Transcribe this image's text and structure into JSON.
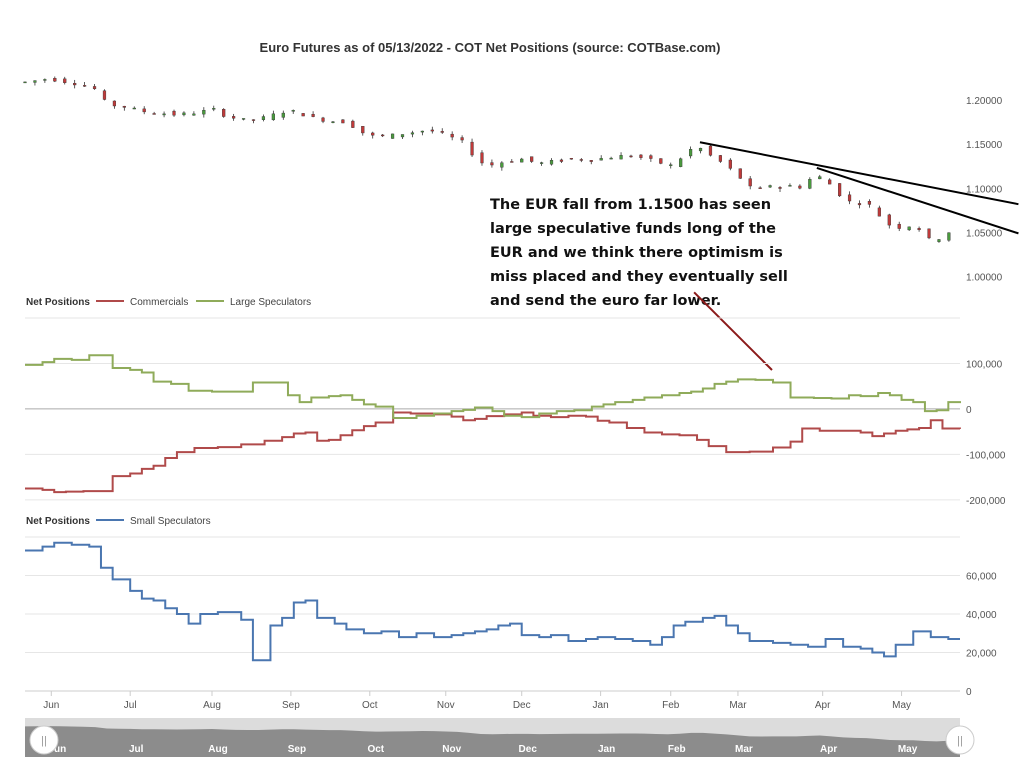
{
  "chart_data": [
    {
      "type": "candlestick",
      "title": "Euro Futures as of 05/13/2022 - COT Net Positions (source: COTBase.com)",
      "y_ticks": [
        "1.20000",
        "1.15000",
        "1.10000",
        "1.05000",
        "1.00000"
      ],
      "ylim": [
        0.985,
        1.245
      ],
      "x_tick_labels": [
        "Jun",
        "Jul",
        "Aug",
        "Sep",
        "Oct",
        "Nov",
        "Dec",
        "Jan",
        "Feb",
        "Mar",
        "Apr",
        "May"
      ],
      "close_path": [
        [
          0,
          1.22
        ],
        [
          8,
          1.224
        ],
        [
          18,
          1.218
        ],
        [
          24,
          1.212
        ],
        [
          28,
          1.195
        ],
        [
          34,
          1.192
        ],
        [
          40,
          1.187
        ],
        [
          46,
          1.185
        ],
        [
          52,
          1.183
        ],
        [
          60,
          1.186
        ],
        [
          64,
          1.19
        ],
        [
          68,
          1.183
        ],
        [
          74,
          1.177
        ],
        [
          80,
          1.178
        ],
        [
          86,
          1.184
        ],
        [
          90,
          1.188
        ],
        [
          94,
          1.185
        ],
        [
          98,
          1.18
        ],
        [
          104,
          1.176
        ],
        [
          110,
          1.175
        ],
        [
          116,
          1.162
        ],
        [
          120,
          1.158
        ],
        [
          126,
          1.16
        ],
        [
          132,
          1.163
        ],
        [
          138,
          1.166
        ],
        [
          144,
          1.16
        ],
        [
          150,
          1.152
        ],
        [
          154,
          1.135
        ],
        [
          158,
          1.125
        ],
        [
          164,
          1.13
        ],
        [
          170,
          1.133
        ],
        [
          176,
          1.128
        ],
        [
          182,
          1.131
        ],
        [
          188,
          1.133
        ],
        [
          194,
          1.132
        ],
        [
          200,
          1.135
        ],
        [
          206,
          1.137
        ],
        [
          212,
          1.134
        ],
        [
          218,
          1.128
        ],
        [
          222,
          1.125
        ],
        [
          226,
          1.14
        ],
        [
          230,
          1.148
        ],
        [
          234,
          1.138
        ],
        [
          238,
          1.13
        ],
        [
          242,
          1.12
        ],
        [
          246,
          1.108
        ],
        [
          250,
          1.095
        ],
        [
          254,
          1.105
        ],
        [
          258,
          1.1
        ],
        [
          262,
          1.103
        ],
        [
          266,
          1.101
        ],
        [
          270,
          1.115
        ],
        [
          274,
          1.11
        ],
        [
          278,
          1.095
        ],
        [
          282,
          1.085
        ],
        [
          286,
          1.083
        ],
        [
          290,
          1.08
        ],
        [
          294,
          1.062
        ],
        [
          298,
          1.055
        ],
        [
          302,
          1.058
        ],
        [
          306,
          1.054
        ],
        [
          310,
          1.04
        ],
        [
          314,
          1.045
        ],
        [
          318,
          1.055
        ]
      ],
      "trendlines": [
        {
          "from": [
            231,
            1.152
          ],
          "to": [
            340,
            1.082
          ]
        },
        {
          "from": [
            271,
            1.123
          ],
          "to": [
            340,
            1.049
          ]
        }
      ],
      "annotation": {
        "lines": [
          "The EUR fall from 1.1500 has seen",
          "large speculative funds long of the",
          "EUR and we think there optimism is",
          "miss placed and they eventually sell",
          "and send the euro far lower."
        ],
        "arrow_from": [
          229,
          1.005
        ],
        "arrow_to": [
          245,
          0.96
        ]
      }
    },
    {
      "type": "line",
      "legend_title": "Net Positions",
      "y_ticks": [
        "100,000",
        "0",
        "-100,000",
        "-200,000"
      ],
      "ylim": [
        -240000,
        200000
      ],
      "series": [
        {
          "name": "Commercials",
          "color": "#b04a4a",
          "values": [
            [
              0,
              -175000
            ],
            [
              6,
              -178000
            ],
            [
              10,
              -183000
            ],
            [
              14,
              -182000
            ],
            [
              20,
              -181000
            ],
            [
              26,
              -181000
            ],
            [
              30,
              -148000
            ],
            [
              36,
              -142000
            ],
            [
              40,
              -132000
            ],
            [
              44,
              -125000
            ],
            [
              48,
              -108000
            ],
            [
              52,
              -95000
            ],
            [
              58,
              -86000
            ],
            [
              66,
              -84000
            ],
            [
              74,
              -78000
            ],
            [
              82,
              -70000
            ],
            [
              88,
              -62000
            ],
            [
              92,
              -54000
            ],
            [
              96,
              -52000
            ],
            [
              100,
              -70000
            ],
            [
              104,
              -68000
            ],
            [
              108,
              -58000
            ],
            [
              112,
              -47000
            ],
            [
              116,
              -38000
            ],
            [
              120,
              -30000
            ],
            [
              126,
              -8000
            ],
            [
              132,
              -10000
            ],
            [
              140,
              -12000
            ],
            [
              146,
              -17000
            ],
            [
              150,
              -25000
            ],
            [
              154,
              -22000
            ],
            [
              158,
              -16000
            ],
            [
              164,
              -12000
            ],
            [
              170,
              -8000
            ],
            [
              174,
              -15000
            ],
            [
              180,
              -18000
            ],
            [
              186,
              -15000
            ],
            [
              192,
              -17000
            ],
            [
              196,
              -26000
            ],
            [
              200,
              -30000
            ],
            [
              206,
              -42000
            ],
            [
              212,
              -52000
            ],
            [
              218,
              -56000
            ],
            [
              224,
              -58000
            ],
            [
              230,
              -68000
            ],
            [
              234,
              -82000
            ],
            [
              240,
              -95000
            ],
            [
              248,
              -94000
            ],
            [
              256,
              -85000
            ],
            [
              262,
              -72000
            ],
            [
              266,
              -43000
            ],
            [
              272,
              -48000
            ],
            [
              280,
              -48000
            ],
            [
              286,
              -52000
            ],
            [
              290,
              -60000
            ],
            [
              294,
              -54000
            ],
            [
              298,
              -48000
            ],
            [
              302,
              -45000
            ],
            [
              306,
              -42000
            ],
            [
              310,
              -25000
            ],
            [
              314,
              -43000
            ],
            [
              320,
              -44000
            ]
          ]
        },
        {
          "name": "Large Speculators",
          "color": "#8fab5a",
          "values": [
            [
              0,
              97000
            ],
            [
              6,
              103000
            ],
            [
              10,
              110000
            ],
            [
              16,
              108000
            ],
            [
              22,
              118000
            ],
            [
              26,
              118000
            ],
            [
              30,
              90000
            ],
            [
              36,
              86000
            ],
            [
              40,
              80000
            ],
            [
              44,
              60000
            ],
            [
              50,
              55000
            ],
            [
              56,
              40000
            ],
            [
              64,
              38000
            ],
            [
              74,
              38000
            ],
            [
              78,
              58000
            ],
            [
              86,
              58000
            ],
            [
              90,
              30000
            ],
            [
              94,
              15000
            ],
            [
              98,
              25000
            ],
            [
              104,
              28000
            ],
            [
              108,
              30000
            ],
            [
              112,
              20000
            ],
            [
              116,
              10000
            ],
            [
              120,
              5000
            ],
            [
              126,
              -20000
            ],
            [
              134,
              -15000
            ],
            [
              140,
              -10000
            ],
            [
              146,
              -5000
            ],
            [
              150,
              -2000
            ],
            [
              154,
              3000
            ],
            [
              160,
              -5000
            ],
            [
              164,
              -15000
            ],
            [
              170,
              -18000
            ],
            [
              176,
              -10000
            ],
            [
              182,
              -5000
            ],
            [
              188,
              -3000
            ],
            [
              194,
              5000
            ],
            [
              198,
              10000
            ],
            [
              202,
              15000
            ],
            [
              208,
              20000
            ],
            [
              212,
              25000
            ],
            [
              218,
              30000
            ],
            [
              224,
              35000
            ],
            [
              228,
              38000
            ],
            [
              232,
              45000
            ],
            [
              236,
              55000
            ],
            [
              240,
              60000
            ],
            [
              244,
              65000
            ],
            [
              250,
              64000
            ],
            [
              256,
              58000
            ],
            [
              262,
              25000
            ],
            [
              270,
              24000
            ],
            [
              276,
              23000
            ],
            [
              282,
              30000
            ],
            [
              286,
              28000
            ],
            [
              292,
              35000
            ],
            [
              296,
              30000
            ],
            [
              300,
              20000
            ],
            [
              304,
              15000
            ],
            [
              308,
              -5000
            ],
            [
              312,
              -3000
            ],
            [
              316,
              15000
            ],
            [
              320,
              17000
            ]
          ]
        }
      ]
    },
    {
      "type": "line",
      "legend_title": "Net Positions",
      "y_ticks": [
        "60,000",
        "40,000",
        "20,000",
        "0"
      ],
      "ylim": [
        0,
        80000
      ],
      "x_tick_labels": [
        "Jun",
        "Jul",
        "Aug",
        "Sep",
        "Oct",
        "Nov",
        "Dec",
        "Jan",
        "Feb",
        "Mar",
        "Apr",
        "May"
      ],
      "series": [
        {
          "name": "Small Speculators",
          "color": "#4a76b0",
          "values": [
            [
              0,
              73000
            ],
            [
              6,
              75000
            ],
            [
              10,
              77000
            ],
            [
              16,
              76000
            ],
            [
              22,
              75000
            ],
            [
              26,
              64000
            ],
            [
              30,
              58000
            ],
            [
              36,
              52000
            ],
            [
              40,
              48000
            ],
            [
              44,
              47000
            ],
            [
              48,
              43000
            ],
            [
              52,
              40000
            ],
            [
              56,
              35000
            ],
            [
              60,
              40000
            ],
            [
              66,
              41000
            ],
            [
              70,
              41000
            ],
            [
              74,
              37000
            ],
            [
              78,
              16000
            ],
            [
              84,
              34000
            ],
            [
              88,
              38000
            ],
            [
              92,
              46000
            ],
            [
              96,
              47000
            ],
            [
              100,
              38000
            ],
            [
              106,
              35000
            ],
            [
              110,
              32000
            ],
            [
              116,
              30000
            ],
            [
              122,
              31000
            ],
            [
              128,
              28000
            ],
            [
              134,
              30000
            ],
            [
              140,
              28000
            ],
            [
              146,
              29000
            ],
            [
              150,
              30000
            ],
            [
              154,
              31000
            ],
            [
              158,
              32000
            ],
            [
              162,
              34000
            ],
            [
              166,
              35000
            ],
            [
              170,
              29000
            ],
            [
              176,
              28000
            ],
            [
              180,
              29000
            ],
            [
              186,
              26000
            ],
            [
              192,
              27000
            ],
            [
              196,
              28000
            ],
            [
              202,
              27000
            ],
            [
              208,
              26000
            ],
            [
              214,
              24000
            ],
            [
              218,
              28000
            ],
            [
              222,
              34000
            ],
            [
              226,
              36000
            ],
            [
              232,
              38000
            ],
            [
              236,
              39000
            ],
            [
              240,
              34000
            ],
            [
              244,
              30000
            ],
            [
              248,
              26000
            ],
            [
              256,
              25000
            ],
            [
              262,
              24000
            ],
            [
              268,
              23000
            ],
            [
              274,
              27000
            ],
            [
              280,
              23000
            ],
            [
              286,
              22000
            ],
            [
              290,
              20000
            ],
            [
              294,
              18000
            ],
            [
              298,
              24000
            ],
            [
              304,
              31000
            ],
            [
              310,
              28000
            ],
            [
              316,
              27000
            ],
            [
              320,
              27000
            ]
          ]
        }
      ]
    }
  ],
  "navigator": {
    "labels": [
      "Jun",
      "Jul",
      "Aug",
      "Sep",
      "Oct",
      "Nov",
      "Dec",
      "Jan",
      "Feb",
      "Mar",
      "Apr",
      "May"
    ],
    "handle_glyph": "||"
  },
  "colors": {
    "candle_up": "#4a9a3e",
    "candle_down": "#c03a3a",
    "grid": "#e6e6e6",
    "zero_line": "#aaaaaa",
    "navigator_fill": "#8c8c8c"
  }
}
